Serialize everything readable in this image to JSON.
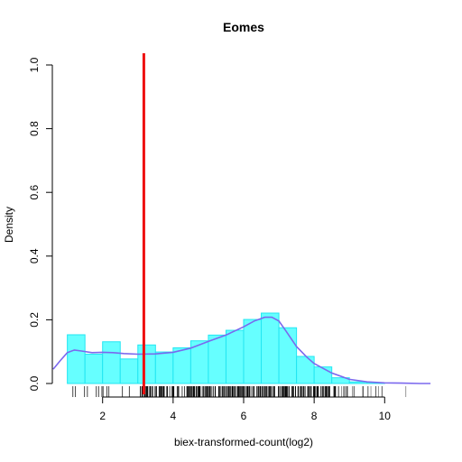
{
  "chart_data": {
    "type": "bar",
    "title": "Eomes",
    "xlabel": "biex-transformed-count(log2)",
    "ylabel": "Density",
    "xlim": [
      0.6,
      11.4
    ],
    "ylim": [
      0,
      1.0
    ],
    "x_ticks": [
      2,
      4,
      6,
      8,
      10
    ],
    "y_ticks": [
      0.0,
      0.2,
      0.4,
      0.6,
      0.8,
      1.0
    ],
    "x_tick_labels": [
      "2",
      "4",
      "6",
      "8",
      "10"
    ],
    "y_tick_labels": [
      "0.0",
      "0.2",
      "0.4",
      "0.6",
      "0.8",
      "1.0"
    ],
    "grid": false,
    "legend": "none",
    "histogram": {
      "bin_width": 0.5,
      "bin_starts": [
        1.0,
        1.5,
        2.0,
        2.5,
        3.0,
        3.5,
        4.0,
        4.5,
        5.0,
        5.5,
        6.0,
        6.5,
        7.0,
        7.5,
        8.0,
        8.5,
        9.0,
        9.5
      ],
      "density": [
        0.153,
        0.092,
        0.131,
        0.077,
        0.121,
        0.099,
        0.112,
        0.134,
        0.152,
        0.167,
        0.201,
        0.221,
        0.175,
        0.085,
        0.052,
        0.018,
        0.005,
        0.001
      ],
      "fill_color": "#66ffff",
      "edge_color": "#22e6f2"
    },
    "density_curve": {
      "color": "#7b68ee",
      "x": [
        0.6,
        0.8,
        1.0,
        1.2,
        1.4,
        1.7,
        2.0,
        2.3,
        2.6,
        3.0,
        3.5,
        4.0,
        4.5,
        5.0,
        5.5,
        6.0,
        6.3,
        6.6,
        6.8,
        7.0,
        7.2,
        7.5,
        7.8,
        8.0,
        8.5,
        9.0,
        9.5,
        10.0,
        10.5,
        11.0,
        11.3
      ],
      "y": [
        0.045,
        0.072,
        0.097,
        0.105,
        0.102,
        0.097,
        0.098,
        0.097,
        0.094,
        0.092,
        0.093,
        0.098,
        0.111,
        0.132,
        0.152,
        0.178,
        0.196,
        0.208,
        0.208,
        0.196,
        0.165,
        0.116,
        0.082,
        0.063,
        0.033,
        0.013,
        0.005,
        0.002,
        0.001,
        0.0,
        0.0
      ]
    },
    "vline": {
      "x": 3.17,
      "color": "#ee1111"
    },
    "rug_start": 0.95
  }
}
